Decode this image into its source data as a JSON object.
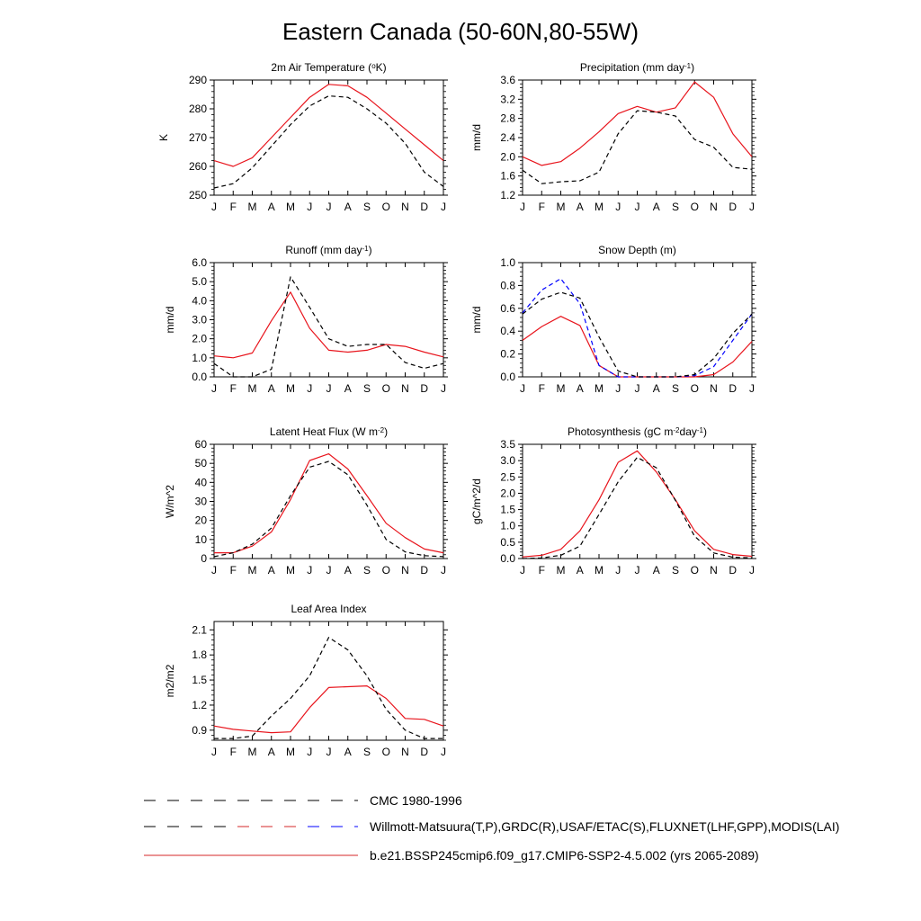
{
  "page": {
    "title": "Eastern Canada (50-60N,80-55W)"
  },
  "months": [
    "J",
    "F",
    "M",
    "A",
    "M",
    "J",
    "J",
    "A",
    "S",
    "O",
    "N",
    "D",
    "J"
  ],
  "legend": [
    {
      "label": "CMC 1980-1996",
      "style": "dashed",
      "colors": [
        "#000000"
      ]
    },
    {
      "label": "Willmott-Matsuura(T,P),GRDC(R),USAF/ETAC(S),FLUXNET(LHF,GPP),MODIS(LAI)",
      "style": "dashed",
      "colors": [
        "#000000",
        "#d62728",
        "#0000ff"
      ]
    },
    {
      "label": "b.e21.BSSP245cmip6.f09_g17.CMIP6-SSP2-4.5.002 (yrs 2065-2089)",
      "style": "solid",
      "colors": [
        "#d62728"
      ]
    }
  ],
  "chart_data": [
    {
      "type": "line",
      "title_parts": [
        "2m Air Temperature (",
        "o",
        "K)"
      ],
      "ylabel": "K",
      "ylim": [
        250,
        290
      ],
      "yticks": [
        250,
        260,
        270,
        280,
        290
      ],
      "ytick_labels": [
        "250",
        "260",
        "270",
        "280",
        "290"
      ],
      "series": [
        {
          "style": "solid",
          "color": "#e8141c",
          "values": [
            262,
            260,
            263,
            270,
            277,
            284,
            288.5,
            288,
            284,
            278.5,
            273,
            267.5,
            262
          ]
        },
        {
          "style": "dashed",
          "color": "#000000",
          "values": [
            252.5,
            254,
            259.5,
            267,
            274.5,
            281,
            284.5,
            284,
            280,
            275,
            268,
            258,
            253
          ]
        }
      ]
    },
    {
      "type": "line",
      "title_parts": [
        "Precipitation (mm day",
        "-1",
        ")"
      ],
      "ylabel": "mm/d",
      "ylim": [
        1.2,
        3.6
      ],
      "yticks": [
        1.2,
        1.6,
        2.0,
        2.4,
        2.8,
        3.2,
        3.6
      ],
      "ytick_labels": [
        "1.2",
        "1.6",
        "2.0",
        "2.4",
        "2.8",
        "3.2",
        "3.6"
      ],
      "series": [
        {
          "style": "solid",
          "color": "#e8141c",
          "values": [
            2.0,
            1.82,
            1.9,
            2.18,
            2.52,
            2.9,
            3.05,
            2.93,
            3.02,
            3.56,
            3.24,
            2.48,
            2.0
          ]
        },
        {
          "style": "dashed",
          "color": "#000000",
          "values": [
            1.72,
            1.44,
            1.48,
            1.5,
            1.68,
            2.48,
            2.96,
            2.93,
            2.85,
            2.36,
            2.2,
            1.78,
            1.74
          ]
        }
      ]
    },
    {
      "type": "line",
      "title_parts": [
        "Runoff (mm day",
        "-1",
        ")"
      ],
      "ylabel": "mm/d",
      "ylim": [
        0,
        6
      ],
      "yticks": [
        0,
        1,
        2,
        3,
        4,
        5,
        6
      ],
      "ytick_labels": [
        "0.0",
        "1.0",
        "2.0",
        "3.0",
        "4.0",
        "5.0",
        "6.0"
      ],
      "series": [
        {
          "style": "solid",
          "color": "#e8141c",
          "values": [
            1.1,
            1.0,
            1.25,
            2.95,
            4.45,
            2.55,
            1.4,
            1.3,
            1.4,
            1.7,
            1.6,
            1.3,
            1.05
          ]
        },
        {
          "style": "dashed",
          "color": "#000000",
          "values": [
            0.7,
            0.0,
            0.0,
            0.4,
            5.25,
            3.65,
            2.0,
            1.6,
            1.7,
            1.7,
            0.75,
            0.45,
            0.7
          ]
        }
      ]
    },
    {
      "type": "line",
      "title_parts": [
        "Snow Depth (m)"
      ],
      "ylabel": "mm/d",
      "ylim": [
        0,
        1
      ],
      "yticks": [
        0,
        0.2,
        0.4,
        0.6,
        0.8,
        1.0
      ],
      "ytick_labels": [
        "0.0",
        "0.2",
        "0.4",
        "0.6",
        "0.8",
        "1.0"
      ],
      "series": [
        {
          "style": "solid",
          "color": "#e8141c",
          "values": [
            0.32,
            0.44,
            0.53,
            0.45,
            0.1,
            0.0,
            0.0,
            0.0,
            0.0,
            0.0,
            0.02,
            0.13,
            0.31
          ]
        },
        {
          "style": "dashed",
          "color": "#0000ff",
          "values": [
            0.56,
            0.76,
            0.86,
            0.64,
            0.1,
            0.0,
            0.0,
            0.0,
            0.0,
            0.01,
            0.09,
            0.32,
            0.55
          ]
        },
        {
          "style": "dashed",
          "color": "#000000",
          "values": [
            0.55,
            0.68,
            0.74,
            0.69,
            0.35,
            0.05,
            0.0,
            0.0,
            0.0,
            0.02,
            0.16,
            0.38,
            0.55
          ]
        }
      ]
    },
    {
      "type": "line",
      "title_parts": [
        "Latent Heat Flux (W m",
        "-2",
        ")"
      ],
      "ylabel": "W/m^2",
      "ylim": [
        0,
        60
      ],
      "yticks": [
        0,
        10,
        20,
        30,
        40,
        50,
        60
      ],
      "ytick_labels": [
        "0",
        "10",
        "20",
        "30",
        "40",
        "50",
        "60"
      ],
      "series": [
        {
          "style": "solid",
          "color": "#e8141c",
          "values": [
            3,
            3,
            6.5,
            14,
            31,
            51.5,
            55,
            47,
            33,
            18.5,
            11,
            5,
            3
          ]
        },
        {
          "style": "dashed",
          "color": "#000000",
          "values": [
            1,
            3,
            7.5,
            16,
            33,
            48,
            51,
            44,
            28,
            10,
            3.5,
            1.5,
            1
          ]
        }
      ]
    },
    {
      "type": "line",
      "title_parts": [
        "Photosynthesis (gC m",
        "-2",
        "day",
        "-1",
        ")"
      ],
      "ylabel": "gC/m^2/d",
      "ylim": [
        0,
        3.5
      ],
      "yticks": [
        0,
        0.5,
        1.0,
        1.5,
        2.0,
        2.5,
        3.0,
        3.5
      ],
      "ytick_labels": [
        "0.0",
        "0.5",
        "1.0",
        "1.5",
        "2.0",
        "2.5",
        "3.0",
        "3.5"
      ],
      "series": [
        {
          "style": "solid",
          "color": "#e8141c",
          "values": [
            0.05,
            0.1,
            0.28,
            0.85,
            1.8,
            2.95,
            3.3,
            2.65,
            1.8,
            0.85,
            0.28,
            0.12,
            0.07
          ]
        },
        {
          "style": "dashed",
          "color": "#000000",
          "values": [
            0.0,
            0.02,
            0.1,
            0.38,
            1.35,
            2.35,
            3.1,
            2.78,
            1.78,
            0.68,
            0.17,
            0.04,
            0.02
          ]
        }
      ]
    },
    {
      "type": "line",
      "title_parts": [
        "Leaf Area Index"
      ],
      "ylabel": "m2/m2",
      "ylim": [
        0.78,
        2.2
      ],
      "yticks": [
        0.9,
        1.2,
        1.5,
        1.8,
        2.1
      ],
      "ytick_labels": [
        "0.9",
        "1.2",
        "1.5",
        "1.8",
        "2.1"
      ],
      "series": [
        {
          "style": "solid",
          "color": "#e8141c",
          "values": [
            0.95,
            0.91,
            0.89,
            0.87,
            0.88,
            1.17,
            1.41,
            1.42,
            1.43,
            1.28,
            1.04,
            1.03,
            0.95
          ]
        },
        {
          "style": "dashed",
          "color": "#000000",
          "values": [
            0.8,
            0.8,
            0.83,
            1.07,
            1.28,
            1.55,
            2.01,
            1.86,
            1.55,
            1.15,
            0.9,
            0.8,
            0.8
          ]
        }
      ]
    }
  ]
}
